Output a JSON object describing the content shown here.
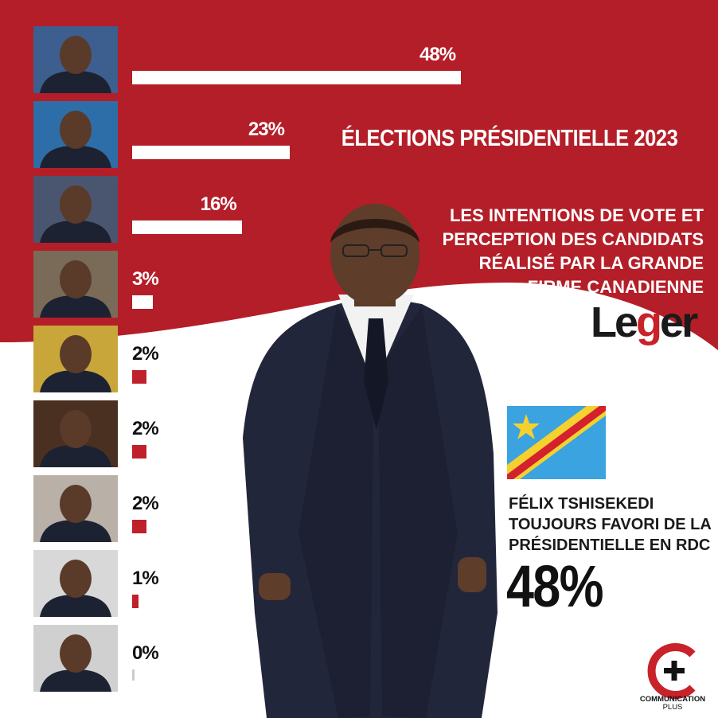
{
  "header": {
    "title": "ÉLECTIONS PRÉSIDENTIELLE 2023",
    "subtitle_lines": [
      "LES INTENTIONS DE VOTE ET",
      "PERCEPTION DES CANDIDATS",
      "RÉALISÉ PAR LA GRANDE",
      "FIRME CANADIENNE"
    ]
  },
  "pollster_logo": {
    "text_start": "Le",
    "text_g": "g",
    "text_end": "er"
  },
  "headline_lines": [
    "FÉLIX TSHISEKEDI",
    "TOUJOURS FAVORI DE LA",
    "PRÉSIDENTIELLE EN RDC"
  ],
  "headline_percent": "48%",
  "brand_logo": {
    "line1": "COMMUNICATION",
    "line2": "PLUS"
  },
  "colors": {
    "primary_red": "#b41e28",
    "bar_white": "#ffffff",
    "bar_red": "#c0202a",
    "zero_bar": "#cccccc",
    "dark": "#1a1a1a"
  },
  "chart_data": {
    "type": "bar",
    "orientation": "horizontal",
    "title": "ÉLECTIONS PRÉSIDENTIELLE 2023",
    "xlim": [
      0,
      48
    ],
    "values": [
      48,
      23,
      16,
      3,
      2,
      2,
      2,
      1,
      0
    ],
    "labels": [
      "48%",
      "23%",
      "16%",
      "3%",
      "2%",
      "2%",
      "2%",
      "1%",
      "0%"
    ]
  }
}
